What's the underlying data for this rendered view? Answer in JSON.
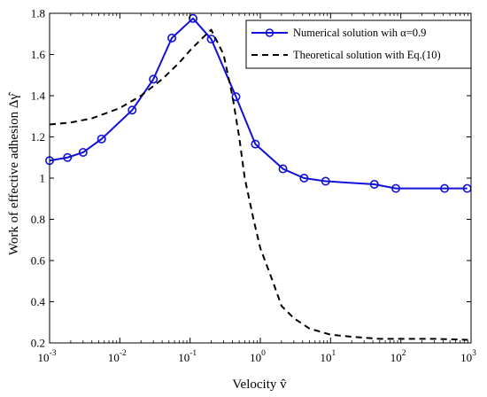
{
  "chart_data": {
    "type": "line",
    "xscale": "log",
    "xlim": [
      0.001,
      1000
    ],
    "ylim": [
      0.2,
      1.8
    ],
    "xlabel": "Velocity v̂",
    "ylabel": "Work of effective adhesion Δγ̂",
    "x_tick_labels": [
      {
        "base": "10",
        "exp": "-3",
        "value": 0.001
      },
      {
        "base": "10",
        "exp": "-2",
        "value": 0.01
      },
      {
        "base": "10",
        "exp": "-1",
        "value": 0.1
      },
      {
        "base": "10",
        "exp": "0",
        "value": 1
      },
      {
        "base": "10",
        "exp": "1",
        "value": 10
      },
      {
        "base": "10",
        "exp": "2",
        "value": 100
      },
      {
        "base": "10",
        "exp": "3",
        "value": 1000
      }
    ],
    "y_tick_labels": [
      "0.2",
      "0.4",
      "0.6",
      "0.8",
      "1",
      "1.2",
      "1.4",
      "1.6",
      "1.8"
    ],
    "y_ticks": [
      0.2,
      0.4,
      0.6,
      0.8,
      1.0,
      1.2,
      1.4,
      1.6,
      1.8
    ],
    "grid": false,
    "legend_position": "top-right",
    "series": [
      {
        "name": "Numerical solution wih α=0.9",
        "color": "#1010d8",
        "line_style": "solid",
        "marker": "circle",
        "x": [
          0.001,
          0.0018,
          0.003,
          0.0055,
          0.015,
          0.03,
          0.055,
          0.11,
          0.2,
          0.45,
          0.85,
          2.1,
          4.2,
          8.5,
          42,
          85,
          420,
          880
        ],
        "y": [
          1.085,
          1.1,
          1.125,
          1.19,
          1.33,
          1.48,
          1.68,
          1.775,
          1.675,
          1.395,
          1.165,
          1.045,
          1.0,
          0.985,
          0.97,
          0.95,
          0.95,
          0.95
        ]
      },
      {
        "name": "Theoretical solution with Eq.(10)",
        "color": "#000000",
        "line_style": "dashed",
        "marker": "none",
        "x": [
          0.001,
          0.002,
          0.004,
          0.007,
          0.01,
          0.02,
          0.04,
          0.07,
          0.1,
          0.15,
          0.2,
          0.3,
          0.4,
          0.5,
          0.6,
          0.8,
          1.0,
          1.5,
          2.0,
          3.0,
          5.0,
          10,
          20,
          50,
          100,
          300,
          900
        ],
        "y": [
          1.26,
          1.27,
          1.29,
          1.32,
          1.34,
          1.4,
          1.48,
          1.56,
          1.62,
          1.68,
          1.72,
          1.6,
          1.4,
          1.2,
          1.0,
          0.8,
          0.66,
          0.5,
          0.38,
          0.32,
          0.27,
          0.24,
          0.23,
          0.22,
          0.22,
          0.22,
          0.215
        ]
      }
    ]
  }
}
